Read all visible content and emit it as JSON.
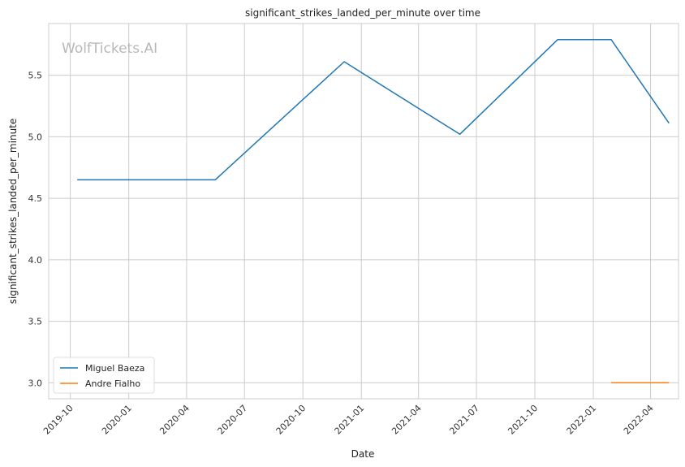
{
  "chart_data": {
    "type": "line",
    "title": "significant_strikes_landed_per_minute over time",
    "xlabel": "Date",
    "ylabel": "significant_strikes_landed_per_minute",
    "watermark": "WolfTickets.AI",
    "x_ticks": [
      "2019-10",
      "2020-01",
      "2020-04",
      "2020-07",
      "2020-10",
      "2021-01",
      "2021-04",
      "2021-07",
      "2021-10",
      "2022-01",
      "2022-04"
    ],
    "y_ticks": [
      "3.0",
      "3.5",
      "4.0",
      "4.5",
      "5.0",
      "5.5"
    ],
    "xlim": [
      "2019-08-28",
      "2022-05-15"
    ],
    "ylim": [
      2.87,
      5.92
    ],
    "grid": true,
    "legend_position": "lower-left",
    "series": [
      {
        "name": "Miguel Baeza",
        "color": "#1f77b4",
        "points": [
          {
            "x": "2019-10-12",
            "y": 4.65
          },
          {
            "x": "2020-05-16",
            "y": 4.65
          },
          {
            "x": "2020-12-05",
            "y": 5.61
          },
          {
            "x": "2021-06-05",
            "y": 5.02
          },
          {
            "x": "2021-11-06",
            "y": 5.79
          },
          {
            "x": "2022-01-29",
            "y": 5.79
          },
          {
            "x": "2022-04-30",
            "y": 5.11
          }
        ]
      },
      {
        "name": "Andre Fialho",
        "color": "#ff7f0e",
        "points": [
          {
            "x": "2022-01-29",
            "y": 3.0
          },
          {
            "x": "2022-04-30",
            "y": 3.0
          }
        ]
      }
    ]
  }
}
